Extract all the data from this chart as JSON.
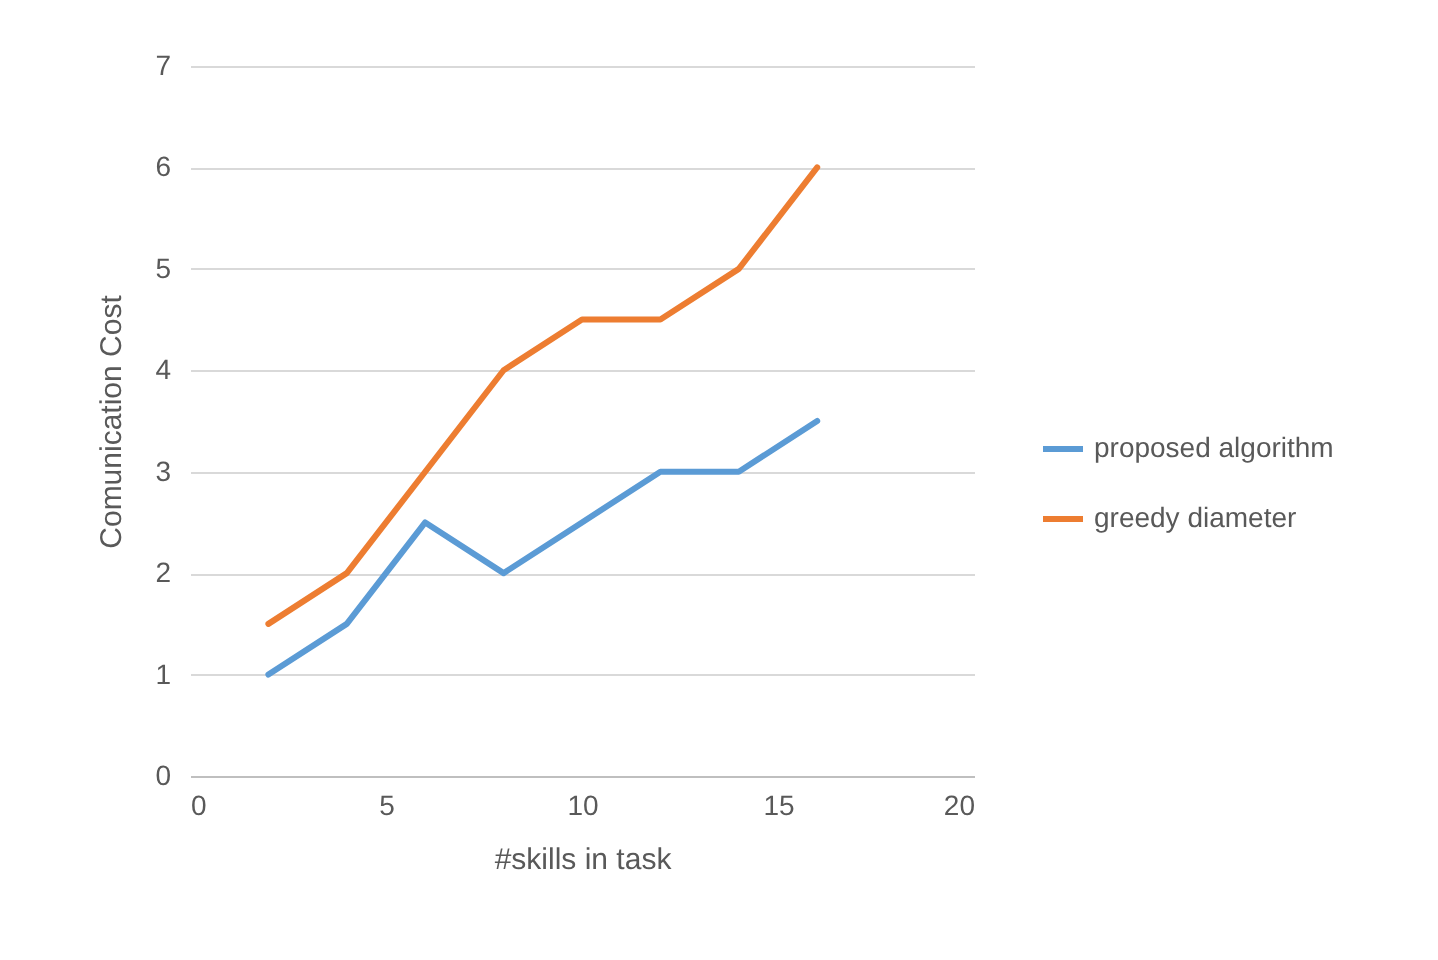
{
  "chart_data": {
    "type": "line",
    "xlabel": "#skills in task",
    "ylabel": "Comunication Cost",
    "x": [
      2,
      4,
      6,
      8,
      10,
      12,
      14,
      16
    ],
    "series": [
      {
        "name": "proposed algorithm",
        "color": "#5b9bd5",
        "values": [
          1,
          1.5,
          2.5,
          2,
          2.5,
          3,
          3,
          3.5
        ]
      },
      {
        "name": "greedy diameter",
        "color": "#ed7d31",
        "values": [
          1.5,
          2,
          3,
          4,
          4.5,
          4.5,
          5,
          6
        ]
      }
    ],
    "xlim": [
      0,
      20
    ],
    "xticks": [
      0,
      5,
      10,
      15,
      20
    ],
    "ylim": [
      0,
      7
    ],
    "yticks": [
      0,
      1,
      2,
      3,
      4,
      5,
      6,
      7
    ],
    "grid": "y",
    "legend": "right",
    "marker": "none",
    "line_style": "solid"
  }
}
